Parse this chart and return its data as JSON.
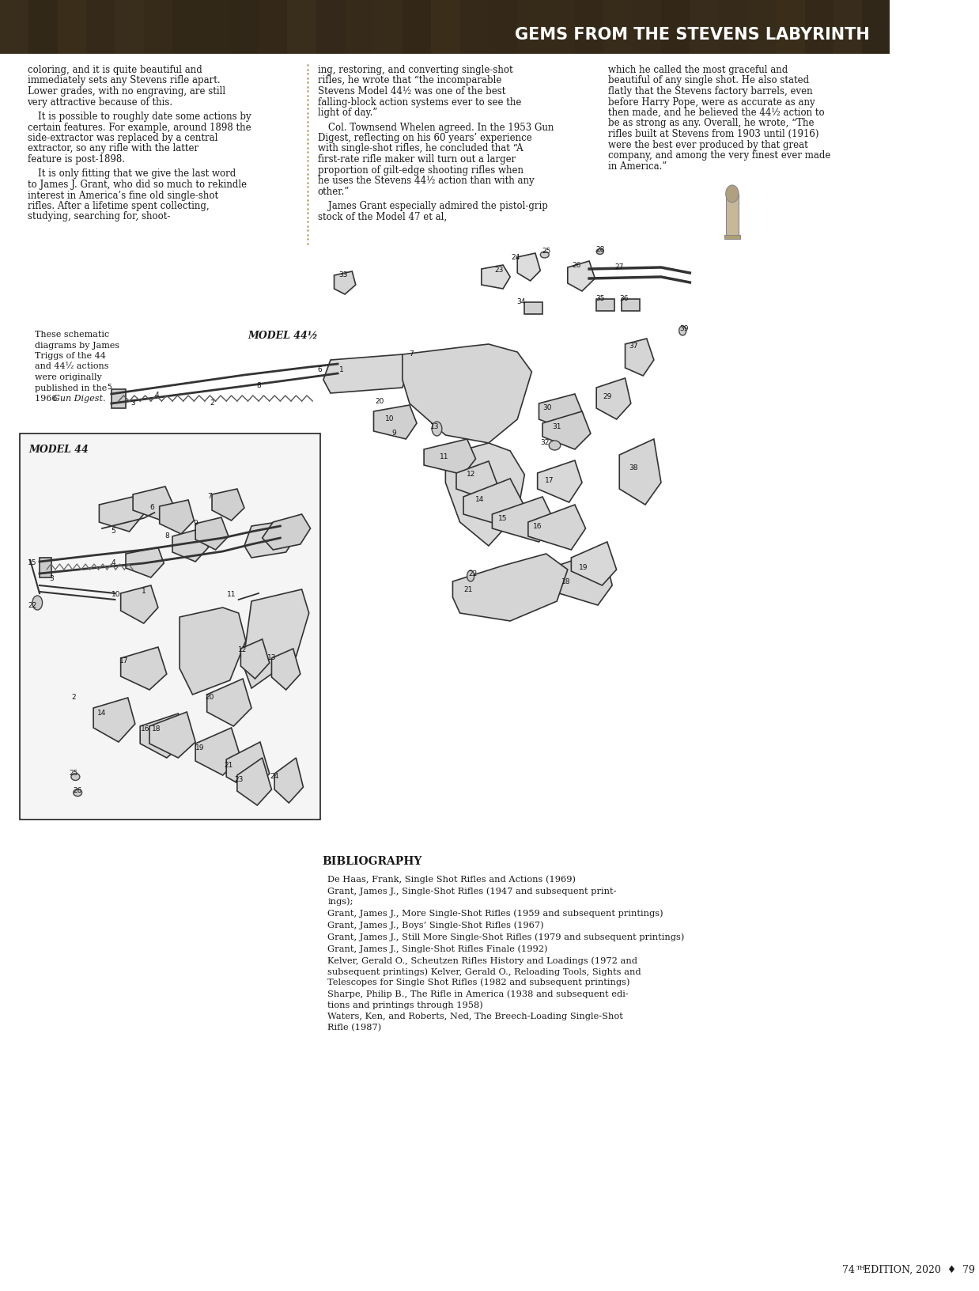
{
  "header_text": "GEMS FROM THE STEVENS LABYRINTH",
  "header_bg_color": "#5a4a3a",
  "header_text_color": "#ffffff",
  "page_bg_color": "#ffffff",
  "text_color": "#1a1a1a",
  "col1_paragraphs": [
    "coloring, and it is quite beautiful and immediately sets any Stevens rifle apart. Lower grades, with no engraving, are still very attractive because of this.",
    "It is possible to roughly date some actions by certain features. For example, around 1898 the side-extractor was replaced by a central extractor, so any rifle with the latter feature is post-1898.",
    "It is only fitting that we give the last word to James J. Grant, who did so much to rekindle interest in America’s fine old single-shot rifles. After a lifetime spent collecting, studying, searching for, shoot-"
  ],
  "col2_paragraphs": [
    "ing, restoring, and converting single-shot rifles, he wrote that “the incomparable Stevens Model 44½ was one of the best falling-block action systems ever to see the light of day.”",
    "Col. Townsend Whelen agreed. In the 1953 Gun Digest, reflecting on his 60 years’ experience with single-shot rifles, he concluded that “A first-rate rifle maker will turn out a larger proportion of gilt-edge shooting rifles when he uses the Stevens 44½ action than with any other.”",
    "James Grant especially admired the pistol-grip stock of the Model 47 et al,"
  ],
  "col3_paragraphs": [
    "which he called the most graceful and beautiful of any single shot. He also stated flatly that the Stevens factory barrels, even before Harry Pope, were as accurate as any then made, and he believed the 44½ action to be as strong as any. Overall, he wrote, “The rifles built at Stevens from 1903 until (1916) were the best ever produced by that great company, and among the very finest ever made in America.”"
  ],
  "schematic_caption_lines": [
    "These schematic",
    "diagrams by James",
    "Triggs of the 44",
    "and 44½ actions",
    "were originally",
    "published in the",
    "1966 Gun Digest."
  ],
  "model_441_label": "MODEL 44½",
  "model_44_label": "MODEL 44",
  "bibliography_title": "BIBLIOGRAPHY",
  "bib_simple": [
    "De Haas, Frank, Single Shot Rifles and Actions (1969)",
    "Grant, James J., Single-Shot Rifles (1947 and subsequent print-|ings);",
    "Grant, James J., More Single-Shot Rifles (1959 and subsequent printings)",
    "Grant, James J., Boys’ Single-Shot Rifles (1967)",
    "Grant, James J., Still More Single-Shot Rifles (1979 and subsequent printings)",
    "Grant, James J., Single-Shot Rifles Finale (1992)",
    "Kelver, Gerald O., Scheutzen Rifles History and Loadings (1972 and|subsequent printings) Kelver, Gerald O., Reloading Tools, Sights and|Telescopes for Single Shot Rifles (1982 and subsequent printings)",
    "Sharpe, Philip B., The Rifle in America (1938 and subsequent edi-|tions and printings through 1958)",
    "Waters, Ken, and Roberts, Ned, The Breech-Loading Single-Shot|Rifle (1987)"
  ]
}
